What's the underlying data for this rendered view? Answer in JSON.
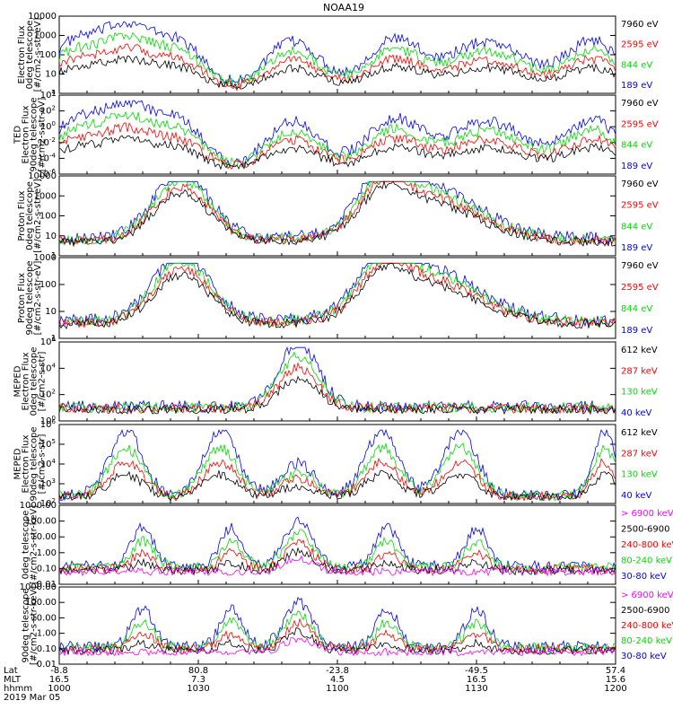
{
  "title": "NOAA19",
  "colors": {
    "blue": "#0000ff",
    "red": "#ff0000",
    "green": "#00dd00",
    "black": "#000000",
    "magenta": "#ff00ff"
  },
  "panels": [
    {
      "ylabel": [
        "Electron Flux",
        "0deg telescope",
        "[#/cm2-s-str-eV]"
      ],
      "type": "lin",
      "yticks": [
        "10000",
        "1000",
        "100",
        "10",
        "1"
      ],
      "legend": [
        {
          "text": "7960 eV",
          "color": "black"
        },
        {
          "text": "2595 eV",
          "color": "red"
        },
        {
          "text": "844 eV",
          "color": "green"
        },
        {
          "text": "189 eV",
          "color": "blue"
        }
      ]
    },
    {
      "ylabel": [
        "TED",
        "Electron Flux",
        "90deg telescope",
        "[#/cm2-s-str-eV]"
      ],
      "type": "exp",
      "yticks": [
        "4",
        "2",
        "0",
        "-2",
        "-4",
        "-6"
      ],
      "legend": [
        {
          "text": "7960 eV",
          "color": "black"
        },
        {
          "text": "2595 eV",
          "color": "red"
        },
        {
          "text": "844 eV",
          "color": "green"
        },
        {
          "text": "189 eV",
          "color": "blue"
        }
      ]
    },
    {
      "ylabel": [
        "Proton Flux",
        "0deg telescope",
        "[#/cm2-s-str-eV]"
      ],
      "type": "lin",
      "yticks": [
        "10000",
        "1000",
        "100",
        "10",
        "1"
      ],
      "legend": [
        {
          "text": "7960 eV",
          "color": "black"
        },
        {
          "text": "2595 eV",
          "color": "red"
        },
        {
          "text": "844 eV",
          "color": "green"
        },
        {
          "text": "189 eV",
          "color": "blue"
        }
      ]
    },
    {
      "ylabel": [
        "Proton Flux",
        "90deg telescope",
        "[#/cm2-s-str-eV]"
      ],
      "type": "lin",
      "yticks": [
        "1000",
        "100",
        "10",
        "1"
      ],
      "legend": [
        {
          "text": "7960 eV",
          "color": "black"
        },
        {
          "text": "2595 eV",
          "color": "red"
        },
        {
          "text": "844 eV",
          "color": "green"
        },
        {
          "text": "189 eV",
          "color": "blue"
        }
      ]
    },
    {
      "ylabel": [
        "MEPED",
        "Electron Flux",
        "0deg telescope",
        "[#/cm2-s-str]"
      ],
      "type": "exp",
      "yticks": [
        "6",
        "4",
        "2",
        "0"
      ],
      "legend": [
        {
          "text": "612 keV",
          "color": "black"
        },
        {
          "text": "287 keV",
          "color": "red"
        },
        {
          "text": "130 keV",
          "color": "green"
        },
        {
          "text": "40 keV",
          "color": "blue"
        }
      ]
    },
    {
      "ylabel": [
        "MEPED",
        "Electron Flux",
        "90deg telescope",
        "[#/cm2-s-str]"
      ],
      "type": "exp",
      "yticks": [
        "6",
        "5",
        "4",
        "3",
        "2"
      ],
      "legend": [
        {
          "text": "612 keV",
          "color": "black"
        },
        {
          "text": "287 keV",
          "color": "red"
        },
        {
          "text": "130 keV",
          "color": "green"
        },
        {
          "text": "40 keV",
          "color": "blue"
        }
      ]
    },
    {
      "ylabel": [
        "0deg telescope",
        "[#/cm2-s-str-keV]"
      ],
      "type": "lin",
      "yticks": [
        "1000.00",
        "100.00",
        "10.00",
        "1.00",
        "0.10",
        "0.01"
      ],
      "legend": [
        {
          "text": "> 6900 keV",
          "color": "magenta"
        },
        {
          "text": "2500-6900",
          "color": "black"
        },
        {
          "text": "240-800 keV",
          "color": "red"
        },
        {
          "text": "80-240 keV",
          "color": "green"
        },
        {
          "text": "30-80 keV",
          "color": "blue"
        }
      ]
    },
    {
      "ylabel": [
        "90deg telescope",
        "[#/cm2-s-str-keV]"
      ],
      "type": "lin",
      "yticks": [
        "1000.00",
        "100.00",
        "10.00",
        "1.00",
        "0.10",
        "0.01"
      ],
      "legend": [
        {
          "text": "> 6900 keV",
          "color": "magenta"
        },
        {
          "text": "2500-6900",
          "color": "black"
        },
        {
          "text": "240-800 keV",
          "color": "red"
        },
        {
          "text": "80-240 keV",
          "color": "green"
        },
        {
          "text": "30-80 keV",
          "color": "blue"
        }
      ]
    }
  ],
  "footer": {
    "rows": [
      {
        "label": "Lat",
        "values": [
          "-8.8",
          "80.8",
          "-23.8",
          "-49.5",
          "57.4"
        ]
      },
      {
        "label": "MLT",
        "values": [
          "16.5",
          "7.3",
          "4.5",
          "16.5",
          "15.6"
        ]
      },
      {
        "label": "hhmm",
        "values": [
          "1000",
          "1030",
          "1100",
          "1130",
          "1200"
        ]
      }
    ],
    "date": "2019 Mar 05"
  },
  "chart_data": {
    "type": "line",
    "title": "NOAA19",
    "x": [
      "1000",
      "1030",
      "1100",
      "1130",
      "1200"
    ],
    "xlabel": "hhmm",
    "series_notes": "eight stacked time-series panels of particle flux on log axes"
  }
}
